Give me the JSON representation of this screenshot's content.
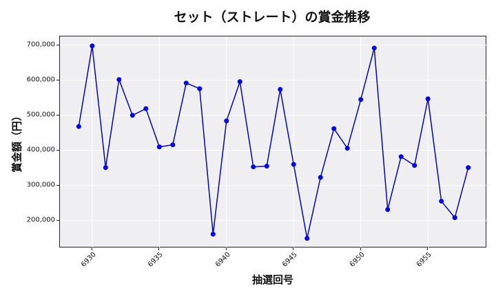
{
  "chart_data": {
    "type": "line",
    "title": "セット（ストレート）の賞金推移",
    "xlabel": "抽選回号",
    "ylabel": "賞金額（円）",
    "x": [
      6929,
      6930,
      6931,
      6932,
      6933,
      6934,
      6935,
      6936,
      6937,
      6938,
      6939,
      6940,
      6941,
      6942,
      6943,
      6944,
      6945,
      6946,
      6947,
      6948,
      6949,
      6950,
      6951,
      6952,
      6953,
      6954,
      6955,
      6956,
      6957,
      6958
    ],
    "values": [
      468000,
      698000,
      351000,
      602000,
      500000,
      519000,
      410000,
      416000,
      592000,
      576000,
      161000,
      484000,
      596000,
      353000,
      355000,
      574000,
      360000,
      149000,
      323000,
      462000,
      406000,
      545000,
      692000,
      231000,
      382000,
      357000,
      547000,
      255000,
      208000,
      351000
    ],
    "xticks": [
      6930,
      6935,
      6940,
      6945,
      6950,
      6955
    ],
    "xtick_labels": [
      "6930",
      "6935",
      "6940",
      "6945",
      "6950",
      "6955"
    ],
    "yticks": [
      200000,
      300000,
      400000,
      500000,
      600000,
      700000
    ],
    "ytick_labels": [
      "200,000",
      "300,000",
      "400,000",
      "500,000",
      "600,000",
      "700,000"
    ],
    "xlim": [
      6927.6,
      6959.4
    ],
    "ylim": [
      121000,
      725000
    ],
    "grid": true,
    "legend": null,
    "line_color": "#0000cc",
    "marker_color": "#0000ff",
    "background_color": "#efeff1"
  }
}
